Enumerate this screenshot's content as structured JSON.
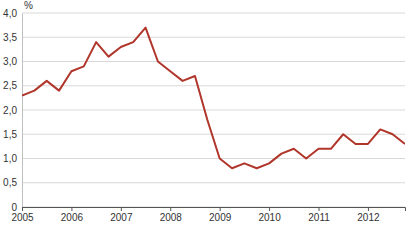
{
  "chart_data": {
    "type": "line",
    "y_label": "%",
    "categories": [
      "2005",
      null,
      null,
      null,
      "2006",
      null,
      null,
      null,
      "2007",
      null,
      null,
      null,
      "2008",
      null,
      null,
      null,
      "2009",
      null,
      null,
      null,
      "2010",
      null,
      null,
      null,
      "2011",
      null,
      null,
      null,
      "2012",
      null,
      null,
      null
    ],
    "values": [
      2.3,
      2.4,
      2.6,
      2.4,
      2.8,
      2.9,
      3.4,
      3.1,
      3.3,
      3.4,
      3.7,
      3.0,
      2.8,
      2.6,
      2.7,
      1.8,
      1.0,
      0.8,
      0.9,
      0.8,
      0.9,
      1.1,
      1.2,
      1.0,
      1.2,
      1.2,
      1.5,
      1.3,
      1.3,
      1.6,
      1.5,
      1.3
    ],
    "color": "#b0362b",
    "ylim": [
      0,
      4
    ],
    "yticks": [
      0,
      {
        "value": 0.5,
        "label": "0,5"
      },
      {
        "value": 1,
        "label": "1,0"
      },
      {
        "value": 1.5,
        "label": "1,5"
      },
      {
        "value": 2,
        "label": "2,0"
      },
      {
        "value": 2.5,
        "label": "2,5"
      },
      {
        "value": 3,
        "label": "3,0"
      },
      {
        "value": 3.5,
        "label": "3,5"
      },
      {
        "value": 4,
        "label": "4,0"
      }
    ],
    "grid": true
  }
}
